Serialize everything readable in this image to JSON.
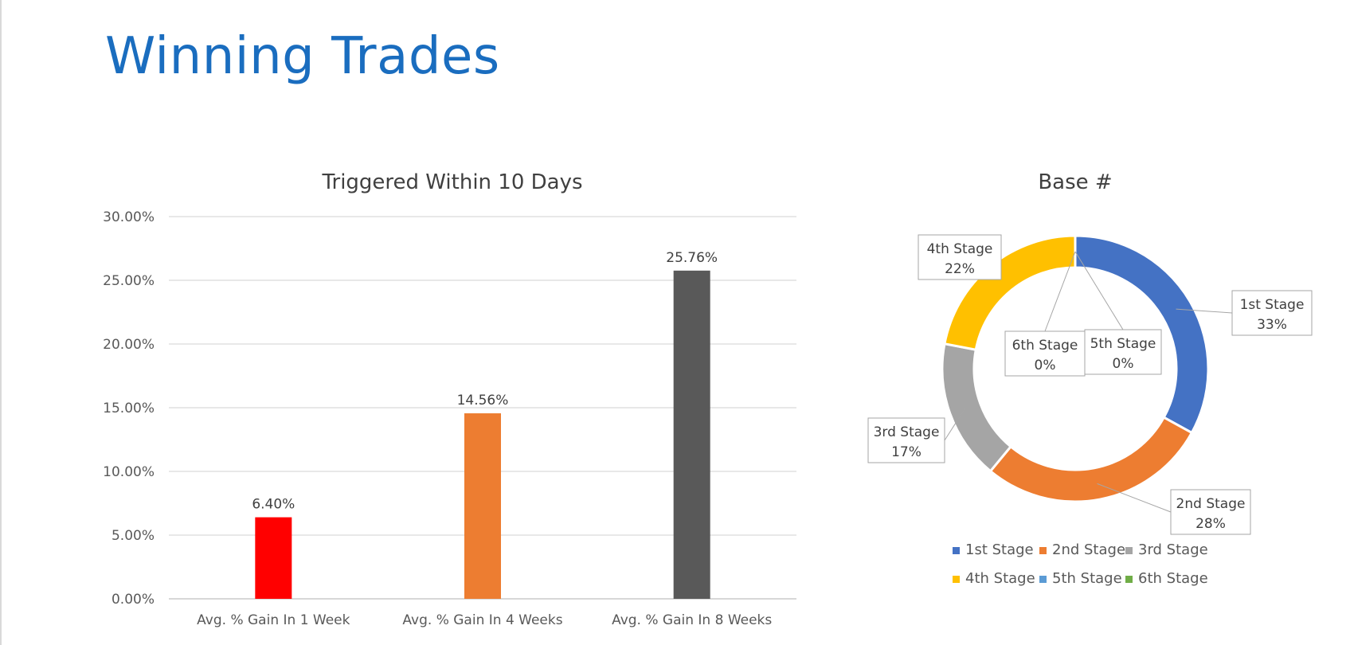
{
  "page": {
    "title": "Winning Trades"
  },
  "chart_data": [
    {
      "type": "bar",
      "title": "Triggered Within 10 Days",
      "categories": [
        "Avg. % Gain In 1 Week",
        "Avg. % Gain In 4 Weeks",
        "Avg. % Gain In 8 Weeks"
      ],
      "values": [
        6.4,
        14.56,
        25.76
      ],
      "data_labels": [
        "6.40%",
        "14.56%",
        "25.76%"
      ],
      "colors": [
        "#ff0000",
        "#ed7d31",
        "#595959"
      ],
      "ylim": [
        0,
        30
      ],
      "yticks": [
        0,
        5,
        10,
        15,
        20,
        25,
        30
      ],
      "ytick_labels": [
        "0.00%",
        "5.00%",
        "10.00%",
        "15.00%",
        "20.00%",
        "25.00%",
        "30.00%"
      ],
      "grid": true,
      "legend": "none"
    },
    {
      "type": "pie",
      "title": "Base #",
      "donut": true,
      "labels": [
        "1st Stage",
        "2nd Stage",
        "3rd Stage",
        "4th Stage",
        "5th Stage",
        "6th Stage"
      ],
      "values": [
        33,
        28,
        17,
        22,
        0,
        0
      ],
      "value_labels": [
        "33%",
        "28%",
        "17%",
        "22%",
        "0%",
        "0%"
      ],
      "colors": [
        "#4472c4",
        "#ed7d31",
        "#a5a5a5",
        "#ffc000",
        "#5b9bd5",
        "#70ad47"
      ],
      "legend": "bottom"
    }
  ]
}
